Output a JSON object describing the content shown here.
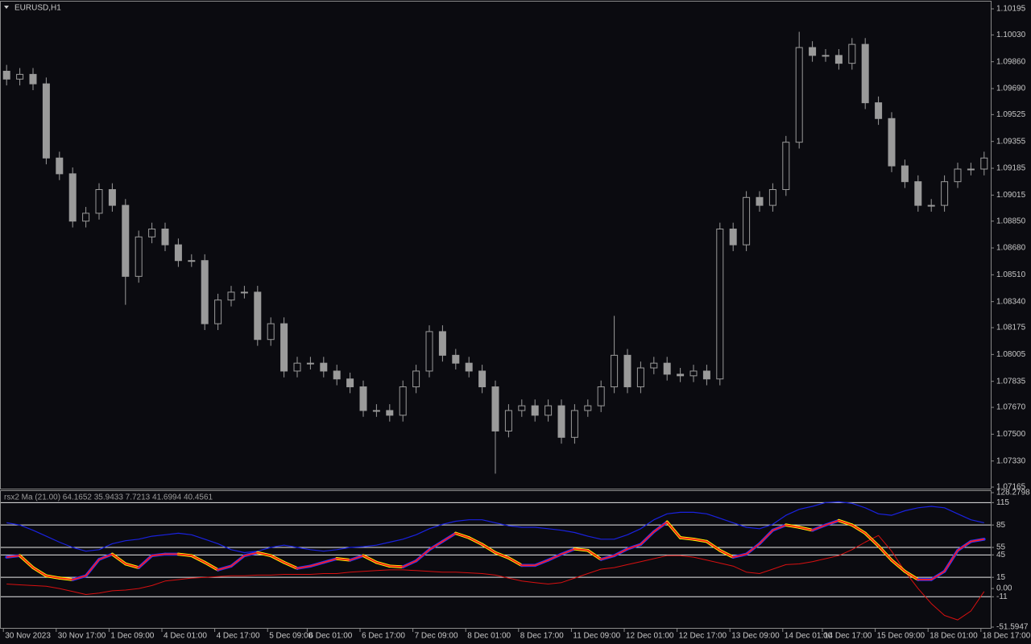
{
  "chart_data": [
    {
      "type": "candlestick",
      "title": "EURUSD,H1",
      "color": "#9a9a9a",
      "categories": [
        "30 Nov 2023",
        null,
        null,
        null,
        "30 Nov 17:00",
        null,
        null,
        null,
        "1 Dec 09:00",
        null,
        null,
        null,
        "4 Dec 01:00",
        null,
        null,
        null,
        "4 Dec 17:00",
        null,
        null,
        null,
        "5 Dec 09:00",
        null,
        null,
        "6 Dec 01:00",
        null,
        null,
        null,
        "6 Dec 17:00",
        null,
        null,
        null,
        "7 Dec 09:00",
        null,
        null,
        null,
        "8 Dec 01:00",
        null,
        null,
        null,
        "8 Dec 17:00",
        null,
        null,
        null,
        "11 Dec 09:00",
        null,
        null,
        null,
        "12 Dec 01:00",
        null,
        null,
        null,
        "12 Dec 17:00",
        null,
        null,
        null,
        "13 Dec 09:00",
        null,
        null,
        null,
        "14 Dec 01:00",
        null,
        null,
        "14 Dec 17:00",
        null,
        null,
        null,
        "15 Dec 09:00",
        null,
        null,
        null,
        "18 Dec 01:00",
        null,
        null,
        null,
        "18 Dec 17:00"
      ],
      "open": [
        1.098,
        1.0975,
        1.0978,
        1.0972,
        1.0925,
        1.0915,
        1.0885,
        1.089,
        1.0905,
        1.0895,
        1.085,
        1.0875,
        1.088,
        1.087,
        1.086,
        1.086,
        1.082,
        1.0835,
        1.084,
        1.084,
        1.081,
        1.082,
        1.079,
        1.0795,
        1.0795,
        1.079,
        1.0785,
        1.078,
        1.0765,
        1.0765,
        1.0762,
        1.078,
        1.079,
        1.0815,
        1.08,
        1.0795,
        1.079,
        1.078,
        1.0752,
        1.0765,
        1.0768,
        1.0762,
        1.0768,
        1.0748,
        1.0765,
        1.0768,
        1.078,
        1.08,
        1.078,
        1.0792,
        1.0795,
        1.0788,
        1.0787,
        1.079,
        1.0785,
        1.088,
        1.087,
        1.09,
        1.0895,
        1.0905,
        1.0935,
        1.0995,
        1.099,
        1.099,
        1.0985,
        1.0997,
        1.096,
        1.095,
        1.092,
        1.091,
        1.0895,
        1.0895,
        1.091,
        1.0918,
        1.0918
      ],
      "high": [
        1.0984,
        1.0982,
        1.0982,
        1.0976,
        1.0929,
        1.0919,
        1.0894,
        1.0909,
        1.0909,
        1.0899,
        1.0879,
        1.0884,
        1.0884,
        1.0874,
        1.0864,
        1.0864,
        1.0839,
        1.0844,
        1.0844,
        1.0844,
        1.0824,
        1.0824,
        1.0799,
        1.0799,
        1.0799,
        1.0794,
        1.0789,
        1.0784,
        1.0769,
        1.0769,
        1.0784,
        1.0794,
        1.0819,
        1.0819,
        1.0804,
        1.0799,
        1.0794,
        1.0784,
        1.0769,
        1.0772,
        1.0772,
        1.0772,
        1.0772,
        1.0769,
        1.0772,
        1.0784,
        1.0825,
        1.0804,
        1.0796,
        1.0799,
        1.0799,
        1.0792,
        1.0794,
        1.0794,
        1.0884,
        1.0884,
        1.0904,
        1.0904,
        1.0909,
        1.0939,
        1.1005,
        1.0999,
        1.0994,
        1.0994,
        1.1001,
        1.1001,
        1.0964,
        1.0954,
        1.0924,
        1.0914,
        1.0899,
        1.0914,
        1.0922,
        1.0922,
        1.0929
      ],
      "low": [
        1.0971,
        1.0971,
        1.0968,
        1.0921,
        1.0911,
        1.0881,
        1.0881,
        1.0886,
        1.0891,
        1.0832,
        1.0846,
        1.0871,
        1.0866,
        1.0856,
        1.0856,
        1.0816,
        1.0816,
        1.0831,
        1.0836,
        1.0806,
        1.0806,
        1.0786,
        1.0786,
        1.0791,
        1.0786,
        1.0781,
        1.0776,
        1.0761,
        1.0761,
        1.0758,
        1.0758,
        1.0776,
        1.0786,
        1.0796,
        1.0791,
        1.0786,
        1.0776,
        1.0725,
        1.0748,
        1.0761,
        1.0758,
        1.0758,
        1.0744,
        1.0744,
        1.0761,
        1.0764,
        1.0776,
        1.0776,
        1.0776,
        1.0788,
        1.0784,
        1.0783,
        1.0783,
        1.0781,
        1.0781,
        1.0866,
        1.0866,
        1.0891,
        1.0891,
        1.0901,
        1.0931,
        1.0986,
        1.0986,
        1.0981,
        1.0981,
        1.0956,
        1.0946,
        1.0916,
        1.0906,
        1.0891,
        1.0891,
        1.0891,
        1.0906,
        1.0914,
        1.0914
      ],
      "close": [
        1.0975,
        1.0978,
        1.0972,
        1.0925,
        1.0915,
        1.0885,
        1.089,
        1.0905,
        1.0895,
        1.085,
        1.0875,
        1.088,
        1.087,
        1.086,
        1.086,
        1.082,
        1.0835,
        1.084,
        1.084,
        1.081,
        1.082,
        1.079,
        1.0795,
        1.0795,
        1.079,
        1.0785,
        1.078,
        1.0765,
        1.0765,
        1.0762,
        1.078,
        1.079,
        1.0815,
        1.08,
        1.0795,
        1.079,
        1.078,
        1.0752,
        1.0765,
        1.0768,
        1.0762,
        1.0768,
        1.0748,
        1.0765,
        1.0768,
        1.078,
        1.08,
        1.078,
        1.0792,
        1.0795,
        1.0788,
        1.0787,
        1.079,
        1.0785,
        1.088,
        1.087,
        1.09,
        1.0895,
        1.0905,
        1.0935,
        1.0995,
        1.099,
        1.099,
        1.0985,
        1.0997,
        1.096,
        1.095,
        1.092,
        1.091,
        1.0895,
        1.0895,
        1.091,
        1.0918,
        1.0918,
        1.0925
      ],
      "ylim": [
        1.07155,
        1.10241
      ],
      "yticks": [
        1.10195,
        {
          "value": 1.1003,
          "label": "1.10030"
        },
        {
          "value": 1.0986,
          "label": "1.09860"
        },
        {
          "value": 1.0969,
          "label": "1.09690"
        },
        1.09525,
        1.09355,
        1.09185,
        1.09015,
        {
          "value": 1.0885,
          "label": "1.08850"
        },
        {
          "value": 1.0868,
          "label": "1.08680"
        },
        {
          "value": 1.0851,
          "label": "1.08510"
        },
        {
          "value": 1.0834,
          "label": "1.08340"
        },
        1.08175,
        1.08005,
        1.07835,
        {
          "value": 1.0767,
          "label": "1.07670"
        },
        {
          "value": 1.075,
          "label": "1.07500"
        },
        {
          "value": 1.0733,
          "label": "1.07330"
        },
        1.07165
      ]
    },
    {
      "type": "line",
      "title": "rsx2 Ma (21.00) 64.1652 35.9433 7.7213 41.6994 40.4561",
      "up_color": "#2233ff",
      "down_color": "#ffff00",
      "series": [
        {
          "color": "#1a22e0",
          "values": [
            88,
            85,
            78,
            70,
            62,
            55,
            50,
            52,
            60,
            64,
            66,
            70,
            72,
            74,
            72,
            66,
            60,
            52,
            48,
            50,
            55,
            58,
            55,
            52,
            50,
            52,
            55,
            56,
            58,
            62,
            66,
            72,
            80,
            86,
            90,
            92,
            92,
            88,
            84,
            82,
            82,
            80,
            78,
            75,
            70,
            66,
            66,
            72,
            80,
            92,
            100,
            102,
            102,
            100,
            94,
            88,
            82,
            80,
            86,
            98,
            106,
            110,
            115,
            116,
            114,
            108,
            100,
            98,
            104,
            108,
            110,
            108,
            100,
            92,
            88
          ]
        },
        {
          "color": "#d81010",
          "values": [
            6,
            5,
            4,
            3,
            0,
            -4,
            -8,
            -6,
            -3,
            -2,
            0,
            4,
            10,
            12,
            14,
            15,
            16,
            17,
            17,
            18,
            18,
            19,
            19,
            19,
            20,
            20,
            22,
            23,
            24,
            25,
            25,
            24,
            23,
            22,
            22,
            21,
            20,
            18,
            14,
            10,
            8,
            6,
            8,
            14,
            20,
            26,
            28,
            32,
            36,
            40,
            44,
            44,
            42,
            38,
            34,
            30,
            22,
            20,
            26,
            32,
            33,
            36,
            40,
            44,
            52,
            62,
            71,
            50,
            23,
            0,
            -20,
            -36,
            -42,
            -30,
            -4
          ]
        },
        {
          "color": "#ff1a1a",
          "values": [
            42,
            44,
            28,
            17,
            14,
            12,
            17,
            39,
            46,
            33,
            28,
            44,
            46,
            46,
            44,
            35,
            25,
            30,
            44,
            48,
            44,
            35,
            27,
            30,
            35,
            40,
            38,
            44,
            35,
            30,
            29,
            37,
            52,
            63,
            74,
            68,
            59,
            48,
            41,
            31,
            31,
            38,
            46,
            53,
            51,
            39,
            44,
            53,
            59,
            76,
            89,
            68,
            66,
            63,
            51,
            42,
            46,
            60,
            78,
            85,
            82,
            78,
            85,
            91,
            85,
            74,
            57,
            38,
            23,
            12,
            12,
            23,
            51,
            63,
            66
          ]
        }
      ],
      "levels": [
        115,
        85,
        55,
        45,
        15,
        -11
      ],
      "ylim": [
        -51.5947,
        128.2798
      ],
      "yticks": [
        128.2798,
        115,
        85,
        55,
        45,
        15,
        {
          "value": 0,
          "label": "0.00"
        },
        -11,
        -51.5947
      ]
    }
  ]
}
